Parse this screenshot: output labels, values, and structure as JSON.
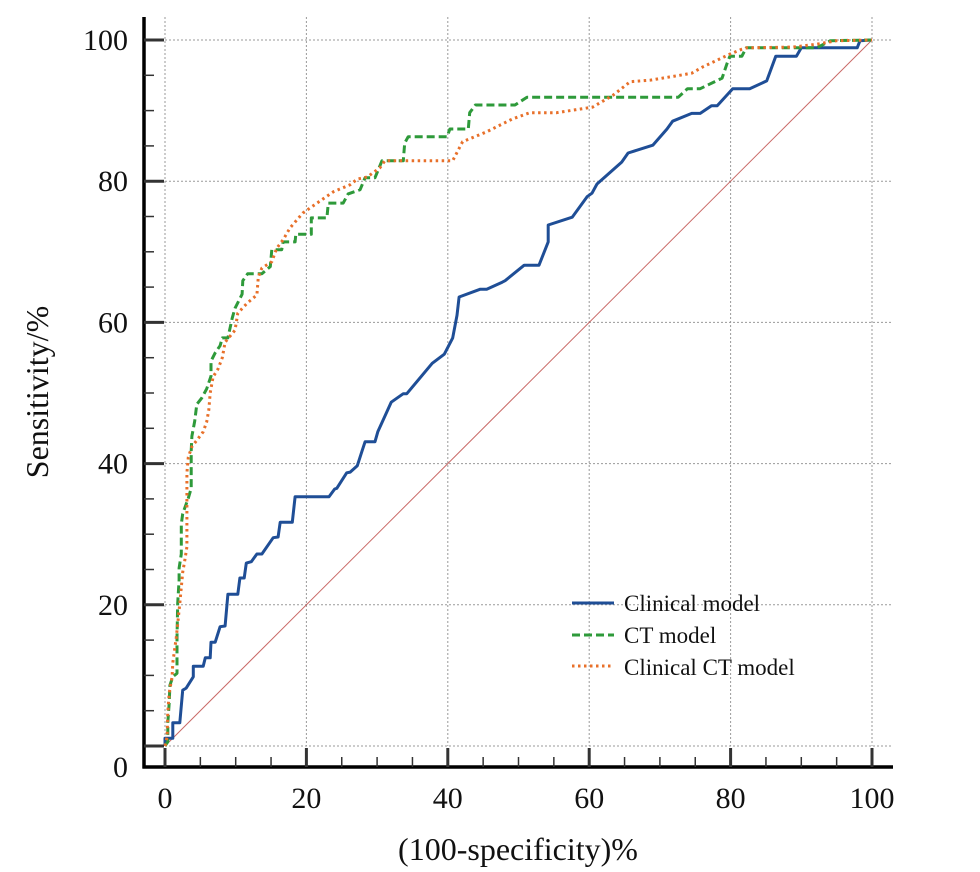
{
  "chart_data": {
    "type": "line",
    "title": "",
    "xlabel": "(100-specificity)%",
    "ylabel": "Sensitivity/%",
    "xlim": [
      0,
      100
    ],
    "ylim": [
      0,
      100
    ],
    "x_ticks": [
      "0",
      "20",
      "40",
      "60",
      "80",
      "100"
    ],
    "y_ticks": [
      "0",
      "20",
      "40",
      "60",
      "80",
      "100"
    ],
    "x_tick_values": [
      0,
      20,
      40,
      60,
      80,
      100
    ],
    "y_tick_values": [
      0,
      20,
      40,
      60,
      80,
      100
    ],
    "minor_tick_step": 5,
    "grid": true,
    "legend_position": "bottom-right",
    "reference_line": {
      "name": "Chance diagonal",
      "x": [
        0,
        100
      ],
      "y": [
        0,
        100
      ],
      "color": "#c0504d"
    },
    "series": [
      {
        "name": "Clinical model",
        "style": "solid",
        "color": "#1f4e96",
        "x": [
          0,
          0,
          1.1,
          1.1,
          2.1,
          2.5,
          3,
          4,
          4,
          5.4,
          5.7,
          6.4,
          6.5,
          7.1,
          7.8,
          8.5,
          8.9,
          10.3,
          10.6,
          11.2,
          11.5,
          12.2,
          13,
          13.7,
          15.3,
          16,
          16.3,
          18,
          18.4,
          23.2,
          24,
          24.3,
          25.7,
          26.2,
          27.2,
          27.9,
          28.3,
          29.7,
          30.1,
          32,
          33.7,
          34.2,
          37.8,
          39.5,
          40.7,
          41.3,
          41.6,
          44.6,
          45.5,
          47.7,
          48.1,
          50.8,
          52.9,
          54.2,
          54.2,
          57.6,
          59.7,
          60.4,
          61.1,
          64.6,
          65.5,
          69,
          71,
          71.8,
          74.5,
          75.7,
          77.3,
          78.1,
          80.3,
          82.7,
          85.1,
          86.4,
          89.3,
          90,
          97.9,
          98.3,
          100
        ],
        "y": [
          0,
          1.1,
          1.1,
          3.3,
          3.3,
          7.9,
          8.2,
          9.8,
          11.3,
          11.3,
          12.5,
          12.5,
          14.7,
          14.7,
          16.9,
          17,
          21.5,
          21.5,
          23.8,
          23.8,
          25.9,
          26.1,
          27.2,
          27.2,
          29.5,
          29.6,
          31.7,
          31.7,
          35.3,
          35.3,
          36.4,
          36.5,
          38.7,
          38.8,
          39.7,
          41.9,
          43.1,
          43.1,
          44.5,
          48.7,
          49.9,
          49.9,
          54.2,
          55.5,
          57.8,
          61,
          63.6,
          64.7,
          64.7,
          65.7,
          65.9,
          68.1,
          68.1,
          71.4,
          73.8,
          74.9,
          77.8,
          78.3,
          79.6,
          82.7,
          84,
          85.1,
          87.4,
          88.5,
          89.6,
          89.6,
          90.7,
          90.7,
          93.1,
          93.1,
          94.2,
          97.7,
          97.7,
          98.9,
          98.9,
          99.9,
          100
        ]
      },
      {
        "name": "CT model",
        "style": "dashed",
        "color": "#2e9a3a",
        "x": [
          0,
          0.4,
          0.4,
          0.6,
          0.7,
          1.1,
          1.7,
          1.7,
          1.8,
          2,
          2,
          2.3,
          2.3,
          2.5,
          3.3,
          3.7,
          3.7,
          3.8,
          4.2,
          4.5,
          5.2,
          5.9,
          6.5,
          6.5,
          6.6,
          7.1,
          7.8,
          8.1,
          8.9,
          9.5,
          9.9,
          10.9,
          11,
          11.7,
          13.7,
          14.9,
          15.1,
          16.5,
          16.7,
          18.4,
          18.5,
          20.7,
          20.7,
          22.9,
          23.1,
          25.2,
          25.9,
          27.6,
          28.3,
          29.7,
          30.7,
          33.7,
          33.9,
          34.4,
          39.9,
          40.3,
          42.9,
          43.1,
          43.9,
          49.5,
          51.2,
          72.6,
          73.9,
          75.7,
          78.8,
          79.5,
          79.9,
          81.6,
          82.2,
          92.2,
          94.1,
          100
        ],
        "y": [
          0,
          0.6,
          3.3,
          6.1,
          8.6,
          9.8,
          10.3,
          15.4,
          20.2,
          23.5,
          25.2,
          27.2,
          31.4,
          32.9,
          35.1,
          36.5,
          41.8,
          43.9,
          46,
          48.4,
          49.3,
          50.6,
          52.4,
          54.5,
          54.7,
          55.7,
          56.7,
          57.8,
          57.8,
          60.6,
          62,
          64,
          65.9,
          66.9,
          66.9,
          67.9,
          70.3,
          70.3,
          71.4,
          71.4,
          72.5,
          72.5,
          74.8,
          74.8,
          76.9,
          76.9,
          78.2,
          78.8,
          80.5,
          80.5,
          82.9,
          82.9,
          85.4,
          86.3,
          86.3,
          87.4,
          87.4,
          89.7,
          90.8,
          90.8,
          91.9,
          91.9,
          93.1,
          93.1,
          94.6,
          96.7,
          97.7,
          97.7,
          98.9,
          98.9,
          99.9,
          100
        ]
      },
      {
        "name": "Clinical CT model",
        "style": "dotted",
        "color": "#e8702a",
        "x": [
          0,
          0.3,
          0.4,
          0.6,
          1,
          1.1,
          1.6,
          2.1,
          2.5,
          2.8,
          3.1,
          3.1,
          3.1,
          3.3,
          3.8,
          4.5,
          5.4,
          5.9,
          6.2,
          6.4,
          6.8,
          7.5,
          8.1,
          8.5,
          9.9,
          10.3,
          11.6,
          13,
          13.2,
          13.7,
          15.1,
          15.8,
          16.7,
          17.7,
          19.5,
          21.5,
          23.8,
          26.2,
          27.2,
          28.6,
          30.4,
          31.1,
          40.7,
          42.1,
          45.5,
          49.1,
          51.6,
          55.4,
          60.5,
          63.4,
          65.8,
          68.6,
          72.8,
          74.5,
          76.1,
          78.2,
          79.9,
          81.6,
          82.3,
          88.8,
          92.2,
          95,
          100
        ],
        "y": [
          0,
          1.3,
          4.7,
          7.5,
          9.8,
          11.8,
          15.4,
          20.2,
          24.6,
          26.3,
          28.2,
          33.9,
          38.7,
          40.9,
          42.4,
          43.3,
          44.5,
          45.9,
          47.6,
          50,
          52.3,
          53.4,
          55,
          57.2,
          58.9,
          61.3,
          62.7,
          63.9,
          66.4,
          67.7,
          68.6,
          70.5,
          71.7,
          73.4,
          75.5,
          76.9,
          78.5,
          79.5,
          80.3,
          80.6,
          81.9,
          82.9,
          82.9,
          85.6,
          87,
          88.8,
          89.7,
          89.7,
          90.5,
          92.2,
          94.1,
          94.3,
          95,
          95.3,
          96.2,
          97.2,
          98,
          98.7,
          98.9,
          99,
          99.4,
          99.9,
          100
        ]
      }
    ]
  }
}
